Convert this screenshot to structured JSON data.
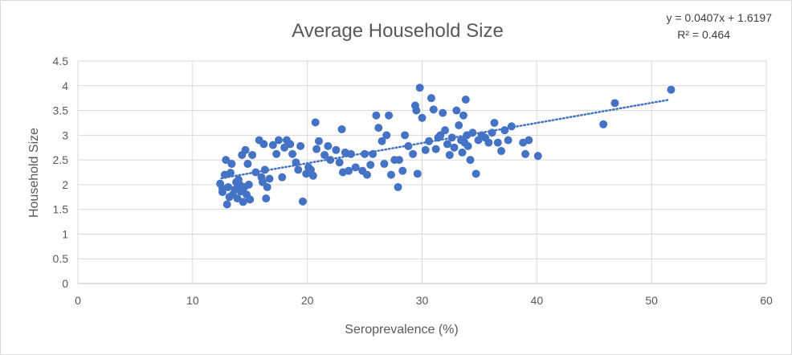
{
  "chart_data": {
    "type": "scatter",
    "title": "Average Household Size",
    "xlabel": "Seroprevalence (%)",
    "ylabel": "Household Size",
    "xlim": [
      0,
      60
    ],
    "ylim": [
      0,
      4.5
    ],
    "x_ticks": [
      "0",
      "10",
      "20",
      "30",
      "40",
      "50",
      "60"
    ],
    "y_ticks": [
      "0",
      "0.5",
      "1",
      "1.5",
      "2",
      "2.5",
      "3",
      "3.5",
      "4",
      "4.5"
    ],
    "grid": true,
    "marker_color": "#4472C4",
    "trendline": {
      "type": "linear",
      "slope": 0.0407,
      "intercept": 1.6197,
      "x_range": [
        12.5,
        51.5
      ],
      "equation_label": "y = 0.0407x + 1.6197",
      "r2_label": "R² = 0.464",
      "style": "dotted"
    },
    "points": [
      [
        12.4,
        2.02
      ],
      [
        12.6,
        1.85
      ],
      [
        12.6,
        1.92
      ],
      [
        12.8,
        2.2
      ],
      [
        12.9,
        2.5
      ],
      [
        13.0,
        1.6
      ],
      [
        13.1,
        1.95
      ],
      [
        13.2,
        1.75
      ],
      [
        13.3,
        2.24
      ],
      [
        13.4,
        2.42
      ],
      [
        13.5,
        1.8
      ],
      [
        13.7,
        1.9
      ],
      [
        13.8,
        2.05
      ],
      [
        13.9,
        1.72
      ],
      [
        14.0,
        2.1
      ],
      [
        14.1,
        2.0
      ],
      [
        14.2,
        1.86
      ],
      [
        14.3,
        2.6
      ],
      [
        14.4,
        1.65
      ],
      [
        14.5,
        1.95
      ],
      [
        14.6,
        2.7
      ],
      [
        14.7,
        1.8
      ],
      [
        14.8,
        2.42
      ],
      [
        14.9,
        2.0
      ],
      [
        15.0,
        1.7
      ],
      [
        15.2,
        2.6
      ],
      [
        15.5,
        2.25
      ],
      [
        15.8,
        2.9
      ],
      [
        16.0,
        2.15
      ],
      [
        16.1,
        2.05
      ],
      [
        16.2,
        2.82
      ],
      [
        16.3,
        2.3
      ],
      [
        16.4,
        1.72
      ],
      [
        16.5,
        1.95
      ],
      [
        16.7,
        2.12
      ],
      [
        17.0,
        2.8
      ],
      [
        17.3,
        2.62
      ],
      [
        17.5,
        2.9
      ],
      [
        17.8,
        2.15
      ],
      [
        18.0,
        2.75
      ],
      [
        18.2,
        2.9
      ],
      [
        18.5,
        2.82
      ],
      [
        18.7,
        2.62
      ],
      [
        19.0,
        2.45
      ],
      [
        19.2,
        2.3
      ],
      [
        19.4,
        2.78
      ],
      [
        19.6,
        1.66
      ],
      [
        19.9,
        2.22
      ],
      [
        20.1,
        2.35
      ],
      [
        20.3,
        2.3
      ],
      [
        20.5,
        2.18
      ],
      [
        20.7,
        3.26
      ],
      [
        20.8,
        2.72
      ],
      [
        21.0,
        2.88
      ],
      [
        21.5,
        2.6
      ],
      [
        21.8,
        2.78
      ],
      [
        22.0,
        2.5
      ],
      [
        22.5,
        2.7
      ],
      [
        22.8,
        2.45
      ],
      [
        23.0,
        3.12
      ],
      [
        23.1,
        2.25
      ],
      [
        23.3,
        2.65
      ],
      [
        23.6,
        2.28
      ],
      [
        23.8,
        2.62
      ],
      [
        24.2,
        2.35
      ],
      [
        24.8,
        2.28
      ],
      [
        25.0,
        2.62
      ],
      [
        25.2,
        2.2
      ],
      [
        25.5,
        2.4
      ],
      [
        25.7,
        2.62
      ],
      [
        26.0,
        3.4
      ],
      [
        26.2,
        3.15
      ],
      [
        26.5,
        2.88
      ],
      [
        26.7,
        2.42
      ],
      [
        26.9,
        3.0
      ],
      [
        27.1,
        3.4
      ],
      [
        27.3,
        2.2
      ],
      [
        27.6,
        2.5
      ],
      [
        27.9,
        1.95
      ],
      [
        28.0,
        2.5
      ],
      [
        28.3,
        2.28
      ],
      [
        28.5,
        3.0
      ],
      [
        28.8,
        2.78
      ],
      [
        29.2,
        2.62
      ],
      [
        29.4,
        3.6
      ],
      [
        29.5,
        3.5
      ],
      [
        29.6,
        2.22
      ],
      [
        29.8,
        3.96
      ],
      [
        30.0,
        3.35
      ],
      [
        30.3,
        2.7
      ],
      [
        30.6,
        2.88
      ],
      [
        30.8,
        3.75
      ],
      [
        31.0,
        3.52
      ],
      [
        31.2,
        2.72
      ],
      [
        31.4,
        2.95
      ],
      [
        31.6,
        3.0
      ],
      [
        31.8,
        3.45
      ],
      [
        32.0,
        3.1
      ],
      [
        32.2,
        2.82
      ],
      [
        32.4,
        2.6
      ],
      [
        32.6,
        2.95
      ],
      [
        32.8,
        2.75
      ],
      [
        33.0,
        3.5
      ],
      [
        33.2,
        3.2
      ],
      [
        33.4,
        2.9
      ],
      [
        33.5,
        2.65
      ],
      [
        33.6,
        3.4
      ],
      [
        33.7,
        2.85
      ],
      [
        33.8,
        3.72
      ],
      [
        33.9,
        3.0
      ],
      [
        34.0,
        2.78
      ],
      [
        34.2,
        2.5
      ],
      [
        34.4,
        3.05
      ],
      [
        34.7,
        2.22
      ],
      [
        34.9,
        2.9
      ],
      [
        35.2,
        3.0
      ],
      [
        35.5,
        2.95
      ],
      [
        35.8,
        2.85
      ],
      [
        36.1,
        3.05
      ],
      [
        36.3,
        3.25
      ],
      [
        36.6,
        2.85
      ],
      [
        36.9,
        2.68
      ],
      [
        37.2,
        3.1
      ],
      [
        37.5,
        2.9
      ],
      [
        37.8,
        3.18
      ],
      [
        38.8,
        2.85
      ],
      [
        39.0,
        2.62
      ],
      [
        39.3,
        2.9
      ],
      [
        40.1,
        2.58
      ],
      [
        45.8,
        3.22
      ],
      [
        46.8,
        3.65
      ],
      [
        51.7,
        3.92
      ]
    ]
  }
}
